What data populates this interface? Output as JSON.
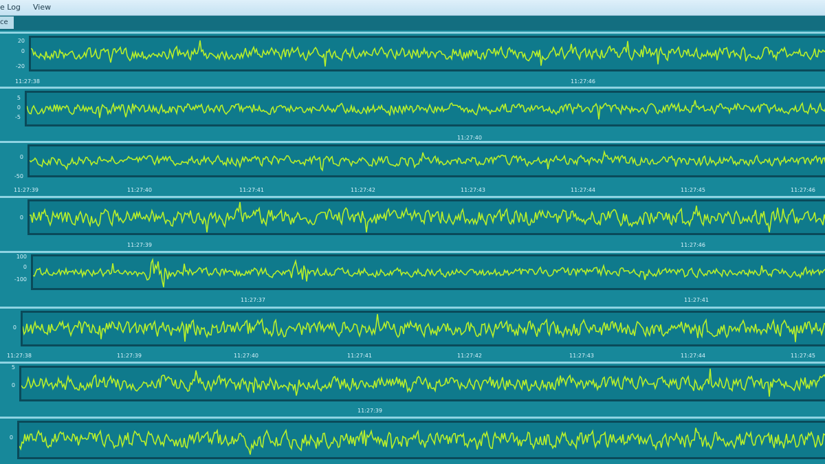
{
  "menubar": {
    "items": [
      "e Log",
      "View"
    ]
  },
  "toolbar": {
    "button": "ce"
  },
  "trace_color": "#b8f02a",
  "panels": [
    {
      "y_ticks": [
        "20",
        "0",
        "-20"
      ],
      "time_labels": [
        "11:27:38",
        "11:27:46"
      ]
    },
    {
      "y_ticks": [
        "5",
        "0",
        "-5"
      ],
      "time_labels": [
        "11:27:40"
      ]
    },
    {
      "y_ticks": [
        "0",
        "-50"
      ],
      "time_labels": [
        "11:27:39",
        "11:27:40",
        "11:27:41",
        "11:27:42",
        "11:27:43",
        "11:27:44",
        "11:27:45",
        "11:27:46"
      ]
    },
    {
      "y_ticks": [
        "0"
      ],
      "time_labels": [
        "11:27:39",
        "11:27:46"
      ]
    },
    {
      "y_ticks": [
        "100",
        "0",
        "-100"
      ],
      "time_labels": [
        "11:27:37",
        "11:27:41"
      ]
    },
    {
      "y_ticks": [
        "0"
      ],
      "time_labels": [
        "11:27:38",
        "11:27:39",
        "11:27:40",
        "11:27:41",
        "11:27:42",
        "11:27:43",
        "11:27:44",
        "11:27:45"
      ]
    },
    {
      "y_ticks": [
        "5",
        "0"
      ],
      "time_labels": [
        "11:27:39"
      ]
    },
    {
      "y_ticks": [
        "0"
      ],
      "time_labels": []
    }
  ]
}
